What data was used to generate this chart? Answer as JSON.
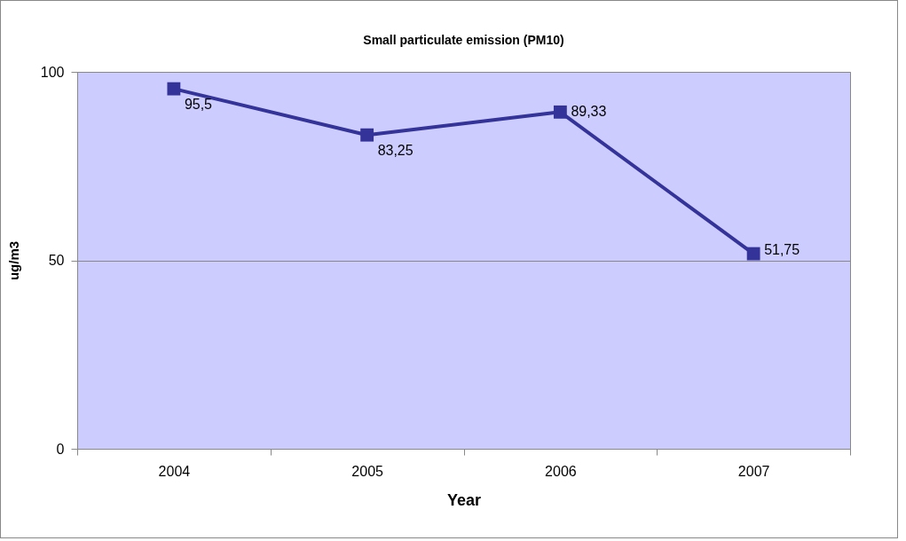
{
  "chart_data": {
    "type": "line",
    "title": "Small particulate emission (PM10)",
    "xlabel": "Year",
    "ylabel": "ug/m3",
    "categories": [
      "2004",
      "2005",
      "2006",
      "2007"
    ],
    "series": [
      {
        "color": "#333399",
        "values": [
          95.5,
          83.25,
          89.33,
          51.75
        ],
        "value_labels": [
          "95,5",
          "83,25",
          "89,33",
          "51,75"
        ]
      }
    ],
    "ylim": [
      0,
      100
    ],
    "yticks": [
      0,
      50,
      100
    ],
    "grid": "y",
    "marker": "square",
    "line_style": "solid"
  }
}
